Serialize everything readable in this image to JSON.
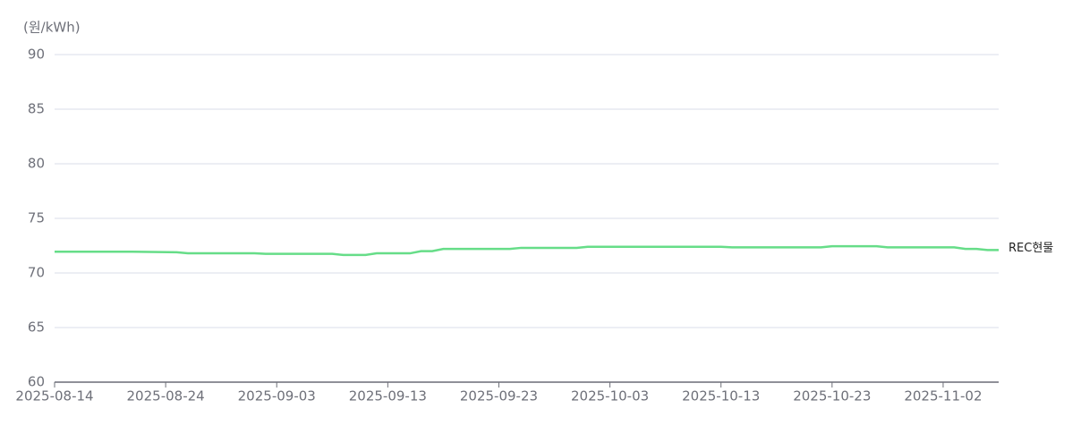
{
  "chart_data": {
    "type": "line",
    "y_axis_label": "(원/kWh)",
    "x": [
      "2025-08-14",
      "2025-08-18",
      "2025-08-21",
      "2025-08-25",
      "2025-08-26",
      "2025-08-29",
      "2025-09-01",
      "2025-09-02",
      "2025-09-05",
      "2025-09-08",
      "2025-09-09",
      "2025-09-11",
      "2025-09-12",
      "2025-09-15",
      "2025-09-16",
      "2025-09-17",
      "2025-09-18",
      "2025-09-22",
      "2025-09-24",
      "2025-09-25",
      "2025-09-30",
      "2025-10-01",
      "2025-10-10",
      "2025-10-13",
      "2025-10-14",
      "2025-10-20",
      "2025-10-22",
      "2025-10-23",
      "2025-10-27",
      "2025-10-28",
      "2025-11-03",
      "2025-11-04",
      "2025-11-05",
      "2025-11-06",
      "2025-11-07"
    ],
    "series": [
      {
        "name": "REC현물",
        "color": "#66dd88",
        "values": [
          71.95,
          71.95,
          71.95,
          71.9,
          71.8,
          71.8,
          71.8,
          71.75,
          71.75,
          71.75,
          71.65,
          71.65,
          71.8,
          71.8,
          72.0,
          72.0,
          72.2,
          72.2,
          72.2,
          72.3,
          72.3,
          72.4,
          72.4,
          72.4,
          72.35,
          72.35,
          72.35,
          72.45,
          72.45,
          72.35,
          72.35,
          72.2,
          72.2,
          72.1,
          72.1
        ]
      }
    ],
    "xlim": [
      "2025-08-14",
      "2025-11-07"
    ],
    "xticks": [
      "2025-08-14",
      "2025-08-24",
      "2025-09-03",
      "2025-09-13",
      "2025-09-23",
      "2025-10-03",
      "2025-10-13",
      "2025-10-23",
      "2025-11-02"
    ],
    "ylim": [
      60,
      90
    ],
    "yticks": [
      60,
      65,
      70,
      75,
      80,
      85,
      90
    ],
    "grid": true
  }
}
